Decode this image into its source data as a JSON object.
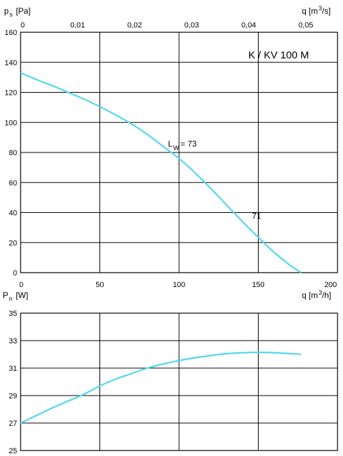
{
  "chart_data": [
    {
      "type": "line",
      "title": "K / KV 100 M",
      "ylabel": {
        "main": "p",
        "sub": "s",
        "unit": "[Pa]"
      },
      "xlabel_top": {
        "main": "q [m",
        "sup": "3",
        "unit": "/s]"
      },
      "x_top_ticks": [
        "0",
        "0,01",
        "0,02",
        "0,03",
        "0,04",
        "0,05"
      ],
      "x_top_range_m3s": [
        0,
        0.05556
      ],
      "xlim": [
        0,
        200
      ],
      "ylim": [
        0,
        160
      ],
      "x_ticks": [
        "0",
        "50",
        "100",
        "150",
        "200"
      ],
      "y_ticks": [
        "0",
        "20",
        "40",
        "60",
        "80",
        "100",
        "120",
        "140",
        "160"
      ],
      "grid": true,
      "series": [
        {
          "x": [
            0,
            10,
            20,
            30,
            40,
            50,
            60,
            70,
            80,
            90,
            100,
            110,
            120,
            130,
            140,
            150,
            160,
            170,
            177
          ],
          "y": [
            133,
            128.5,
            124.5,
            120,
            115.5,
            110.5,
            105,
            99,
            92,
            84,
            76,
            66.5,
            56,
            45,
            34,
            23.5,
            13.5,
            5,
            0
          ]
        }
      ],
      "annotations": [
        {
          "main": "L",
          "sub": "W",
          "text": "= 73",
          "x": 93,
          "y": 84
        },
        {
          "text": "71",
          "x": 146,
          "y": 36
        }
      ]
    },
    {
      "type": "line",
      "ylabel": {
        "main": "P",
        "sub": "n",
        "unit": "[W]"
      },
      "xlabel": {
        "main": "q [m",
        "sup": "3",
        "unit": "/h]"
      },
      "xlim": [
        0,
        200
      ],
      "ylim": [
        25,
        35
      ],
      "y_ticks": [
        "25",
        "27",
        "29",
        "31",
        "33",
        "35"
      ],
      "grid": true,
      "series": [
        {
          "x": [
            0,
            10,
            20,
            30,
            40,
            50,
            60,
            70,
            80,
            90,
            100,
            110,
            120,
            130,
            140,
            150,
            160,
            177
          ],
          "y": [
            27,
            27.55,
            28.1,
            28.6,
            29.1,
            29.7,
            30.2,
            30.6,
            31.0,
            31.3,
            31.55,
            31.75,
            31.92,
            32.05,
            32.12,
            32.15,
            32.12,
            32.0
          ]
        }
      ]
    }
  ]
}
